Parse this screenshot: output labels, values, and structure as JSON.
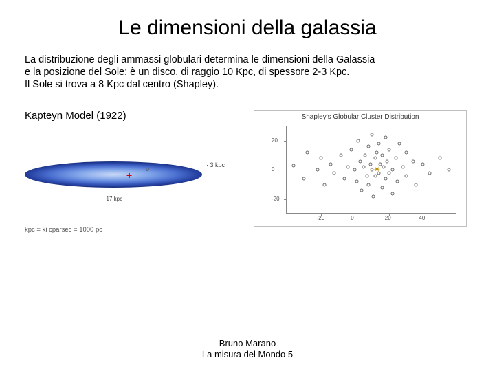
{
  "title": "Le dimensioni della galassia",
  "body": {
    "line1": "La distribuzione degli ammassi globulari  determina le dimensioni della Galassia",
    "line2": "e la posizione del Sole: è un disco, di raggio 10 Kpc, di spessore 2-3 Kpc.",
    "line3": " Il Sole si trova a 8 Kpc dal centro (Shapley)."
  },
  "kapteyn": {
    "label": "Kapteyn Model (1922)",
    "thickness_label": "· 3 kpc",
    "width_label": "·17 kpc",
    "kpc_note": "kpc = ki cparsec = 1000 pc",
    "ellipse_color_center": "#c9d9f7",
    "ellipse_color_edge": "#10205a",
    "sun_plus": "+",
    "sun_o": "o"
  },
  "shapley": {
    "title": "Shapley's Globular Cluster Distribution",
    "x_range": [
      -40,
      60
    ],
    "y_range": [
      -30,
      30
    ],
    "x_ticks": [
      -20,
      0,
      20,
      40
    ],
    "y_ticks": [
      -20,
      0,
      20
    ],
    "point_color": "#6a6a6a",
    "barycentre_symbol": "✷",
    "barycentre_color": "#c09000",
    "barycentre": [
      13,
      0
    ],
    "points": [
      [
        -36,
        3
      ],
      [
        -30,
        -6
      ],
      [
        -28,
        12
      ],
      [
        -22,
        0
      ],
      [
        -20,
        8
      ],
      [
        -18,
        -10
      ],
      [
        -14,
        4
      ],
      [
        -12,
        -2
      ],
      [
        -8,
        10
      ],
      [
        -6,
        -6
      ],
      [
        -4,
        2
      ],
      [
        -2,
        14
      ],
      [
        0,
        0
      ],
      [
        1,
        -8
      ],
      [
        2,
        20
      ],
      [
        3,
        6
      ],
      [
        4,
        -14
      ],
      [
        5,
        2
      ],
      [
        6,
        10
      ],
      [
        7,
        -4
      ],
      [
        8,
        16
      ],
      [
        8,
        -10
      ],
      [
        9,
        4
      ],
      [
        10,
        0
      ],
      [
        10,
        24
      ],
      [
        11,
        -18
      ],
      [
        12,
        8
      ],
      [
        12,
        -4
      ],
      [
        13,
        12
      ],
      [
        14,
        -2
      ],
      [
        14,
        18
      ],
      [
        15,
        4
      ],
      [
        16,
        -12
      ],
      [
        16,
        10
      ],
      [
        17,
        2
      ],
      [
        18,
        -6
      ],
      [
        18,
        22
      ],
      [
        19,
        6
      ],
      [
        20,
        -2
      ],
      [
        20,
        14
      ],
      [
        22,
        0
      ],
      [
        22,
        -16
      ],
      [
        24,
        8
      ],
      [
        25,
        -8
      ],
      [
        26,
        18
      ],
      [
        28,
        2
      ],
      [
        30,
        -4
      ],
      [
        30,
        12
      ],
      [
        34,
        6
      ],
      [
        36,
        -10
      ],
      [
        40,
        4
      ],
      [
        44,
        -2
      ],
      [
        50,
        8
      ],
      [
        55,
        0
      ]
    ]
  },
  "footer": {
    "name": "Bruno Marano",
    "course": "La misura del Mondo 5"
  }
}
